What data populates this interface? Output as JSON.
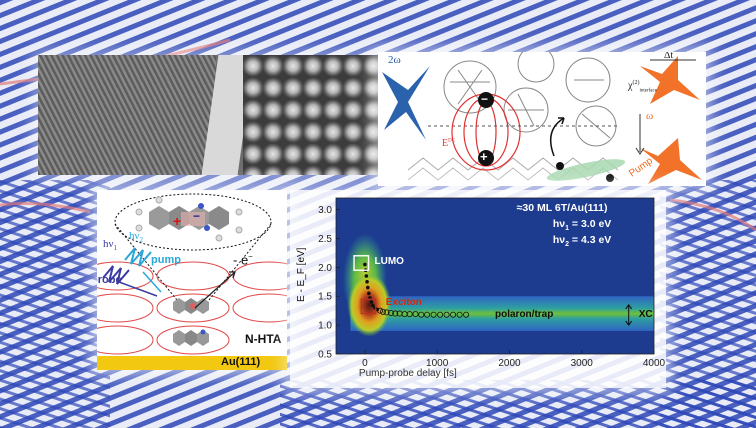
{
  "background": {
    "stripe_colors": [
      "#2e47b8",
      "#e9ecf7",
      "#c9d2ef",
      "#e07a7a"
    ]
  },
  "diagram": {
    "label_2w": "2ω",
    "label_dt": "Δt",
    "label_chi": "χ",
    "label_chi_sup": "(2)",
    "label_chi_sub": "interface",
    "label_w": "ω",
    "label_pump": "Pump",
    "label_e": "E",
    "label_e_sup": "DC",
    "minus": "−",
    "plus": "+",
    "colors": {
      "blue_pulse": "#1f5aa8",
      "orange_pulse": "#f06a1c",
      "field_lines": "#e03030"
    }
  },
  "scheme": {
    "hv1": "hν",
    "hv1_sub": "1",
    "hv2": "hν",
    "hv2_sub": "2",
    "probe": "probe",
    "pump": "pump",
    "electron": "- e",
    "electron_sup": "−",
    "material": "N-HTA",
    "substrate": "Au(111)",
    "colors": {
      "probe": "#3d3aa0",
      "pump": "#2aa6d9",
      "substrate": "#f2c811"
    }
  },
  "plot": {
    "info_line1": "≈30 ML 6T/Au(111)",
    "info_line2_label": "hν",
    "info_line2_sub": "1",
    "info_line2_value": " = 3.0 eV",
    "info_line3_label": "hν",
    "info_line3_sub": "2",
    "info_line3_value": " = 4.3 eV",
    "label_lumo": "LUMO",
    "label_exciton": "Exciton",
    "label_polaron": "polaron/trap",
    "label_xc": "XC"
  },
  "chart_data": {
    "type": "heatmap",
    "title": "",
    "xlabel": "Pump-probe delay [fs]",
    "ylabel": "E - E_F [eV]",
    "xlim": [
      -400,
      4000
    ],
    "ylim": [
      0.5,
      3.2
    ],
    "x_ticks": [
      "0",
      "1000",
      "2000",
      "3000",
      "4000"
    ],
    "x_tick_values": [
      0,
      1000,
      2000,
      3000,
      4000
    ],
    "y_ticks": [
      "0.5",
      "1.0",
      "1.5",
      "2.0",
      "2.5",
      "3.0"
    ],
    "y_tick_values": [
      0.5,
      1.0,
      1.5,
      2.0,
      2.5,
      3.0
    ],
    "trace": {
      "x": [
        0,
        10,
        20,
        30,
        40,
        55,
        70,
        90,
        110,
        140,
        170,
        210,
        250,
        300,
        360,
        420,
        480,
        550,
        620,
        700,
        780,
        860,
        950,
        1040,
        1130,
        1220,
        1310,
        1400
      ],
      "y": [
        2.05,
        1.95,
        1.85,
        1.75,
        1.65,
        1.55,
        1.47,
        1.4,
        1.34,
        1.3,
        1.27,
        1.25,
        1.23,
        1.22,
        1.21,
        1.2,
        1.2,
        1.19,
        1.19,
        1.19,
        1.18,
        1.18,
        1.18,
        1.18,
        1.18,
        1.18,
        1.18,
        1.18
      ]
    },
    "lumo_box": {
      "x": [
        -150,
        50
      ],
      "y": [
        1.95,
        2.2
      ]
    },
    "exciton_box": {
      "x": [
        -50,
        150
      ],
      "y": [
        1.2,
        1.45
      ]
    },
    "xc_range": {
      "x": 3650,
      "y": [
        1.0,
        1.35
      ]
    },
    "polaron_band": {
      "y_center": 1.2,
      "y_halfwidth": 0.15
    },
    "colormap": [
      "#1d3b8f",
      "#2f64c4",
      "#2ea0a0",
      "#4fb04a",
      "#b8cc2a",
      "#e0a020",
      "#b03a1e",
      "#4a1a10"
    ]
  }
}
